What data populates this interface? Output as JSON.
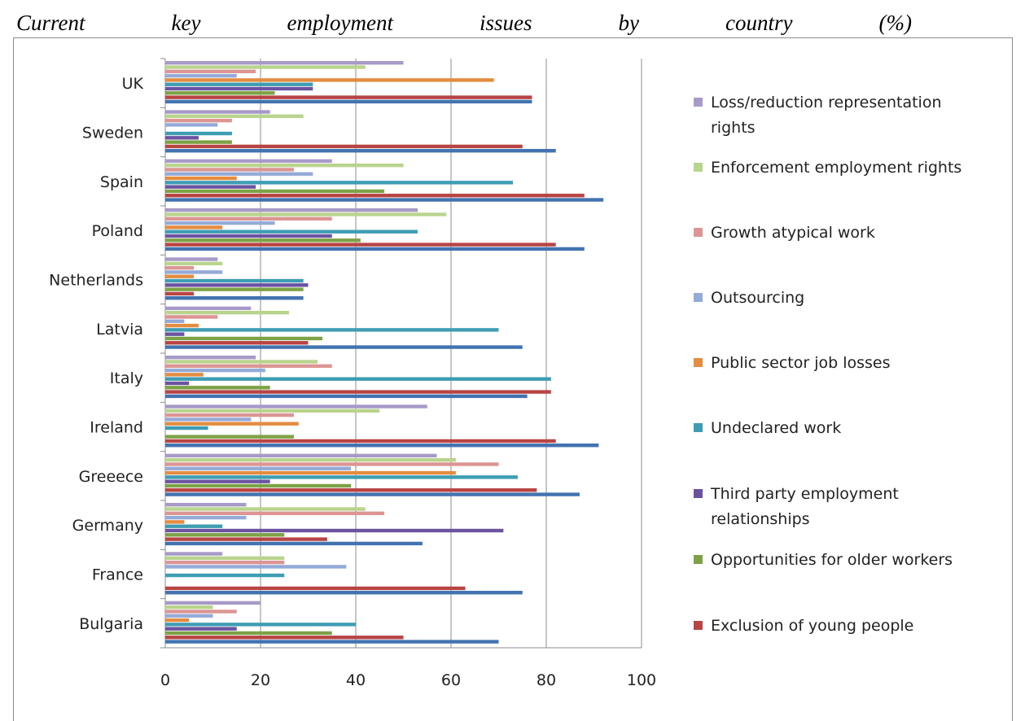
{
  "title_words": [
    "Current",
    "key",
    "employment",
    "issues",
    "by",
    "country",
    "(%)"
  ],
  "chart_data": {
    "type": "bar",
    "orientation": "horizontal",
    "title": "Current key employment issues by country (%)",
    "xlim": [
      0,
      100
    ],
    "x_ticks": [
      "0",
      "20",
      "40",
      "60",
      "80",
      "100"
    ],
    "grid": true,
    "legend_position": "right",
    "categories": [
      "UK",
      "Sweden",
      "Spain",
      "Poland",
      "Netherlands",
      "Latvia",
      "Italy",
      "Ireland",
      "Greeece",
      "Germany",
      "France",
      "Bulgaria"
    ],
    "series": [
      {
        "name": "Loss/reduction representation rights",
        "legend_lines": [
          "Loss/reduction representation",
          "rights"
        ],
        "color": "#a79ac8",
        "values": [
          50,
          22,
          35,
          53,
          11,
          18,
          19,
          55,
          57,
          17,
          12,
          20
        ]
      },
      {
        "name": "Enforcement employment rights",
        "legend_lines": [
          "Enforcement employment rights"
        ],
        "color": "#b9d48d",
        "values": [
          42,
          29,
          50,
          59,
          12,
          26,
          32,
          45,
          61,
          42,
          25,
          10
        ]
      },
      {
        "name": "Growth atypical work",
        "legend_lines": [
          "Growth  atypical work"
        ],
        "color": "#dc9593",
        "values": [
          19,
          14,
          27,
          35,
          6,
          11,
          35,
          27,
          70,
          46,
          25,
          15
        ]
      },
      {
        "name": "Outsourcing",
        "legend_lines": [
          "Outsourcing"
        ],
        "color": "#94abd8",
        "values": [
          15,
          11,
          31,
          23,
          12,
          4,
          21,
          18,
          39,
          17,
          38,
          10
        ]
      },
      {
        "name": "Public sector job losses",
        "legend_lines": [
          "Public sector job losses"
        ],
        "color": "#e48c40",
        "values": [
          69,
          0,
          15,
          12,
          6,
          7,
          8,
          28,
          61,
          4,
          0,
          5
        ]
      },
      {
        "name": "Undeclared work",
        "legend_lines": [
          "Undeclared work"
        ],
        "color": "#3e9db3",
        "values": [
          31,
          14,
          73,
          53,
          29,
          70,
          81,
          9,
          74,
          12,
          25,
          40
        ]
      },
      {
        "name": "Third party employment relationships",
        "legend_lines": [
          "Third party employment",
          "relationships"
        ],
        "color": "#6b53a0",
        "values": [
          31,
          7,
          19,
          35,
          30,
          4,
          5,
          0,
          22,
          71,
          0,
          15
        ]
      },
      {
        "name": "Opportunities for older workers",
        "legend_lines": [
          "Opportunities for older workers"
        ],
        "color": "#7da246",
        "values": [
          23,
          14,
          46,
          41,
          29,
          33,
          22,
          27,
          39,
          25,
          0,
          35
        ]
      },
      {
        "name": "Exclusion of young people",
        "legend_lines": [
          "Exclusion of young people"
        ],
        "color": "#b84443",
        "values": [
          77,
          75,
          88,
          82,
          6,
          30,
          81,
          82,
          78,
          34,
          63,
          50
        ]
      },
      {
        "name": "",
        "legend_lines": [],
        "color": "#4273b0",
        "values": [
          77,
          82,
          92,
          88,
          29,
          75,
          76,
          91,
          87,
          54,
          75,
          70
        ]
      }
    ]
  }
}
